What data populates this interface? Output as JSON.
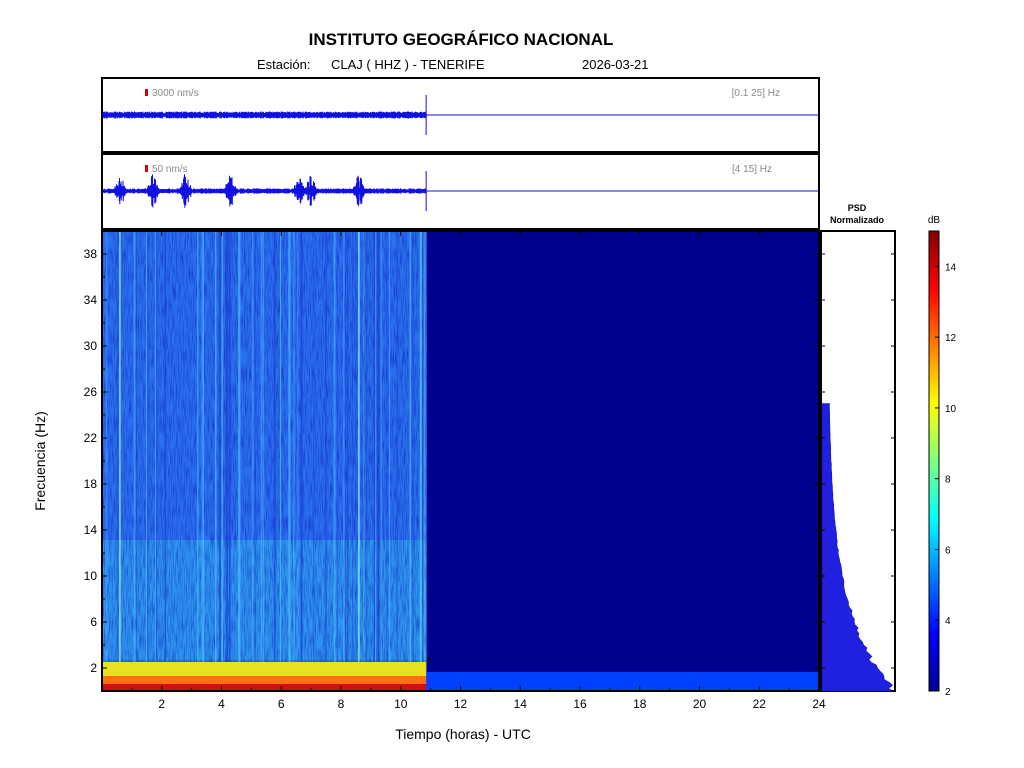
{
  "header": {
    "title": "INSTITUTO GEOGRÁFICO NACIONAL",
    "station_label": "Estación:",
    "station": "CLAJ ( HHZ ) - TENERIFE",
    "date": "2026-03-21"
  },
  "chart_data": [
    {
      "type": "line",
      "panel": "seismogram-broadband",
      "scale_label": "3000 nm/s",
      "band_label": "[0.1 25] Hz",
      "xlim": [
        0,
        24
      ],
      "data_end_hour": 10.85,
      "colors": {
        "trace": "#1010e0",
        "scale_marker": "#dd0000"
      }
    },
    {
      "type": "line",
      "panel": "seismogram-filtered",
      "scale_label": "50 nm/s",
      "band_label": "[4 15] Hz",
      "xlim": [
        0,
        24
      ],
      "data_end_hour": 10.85,
      "events_hours": [
        0.6,
        1.7,
        2.8,
        4.3,
        6.6,
        7.0,
        8.6
      ],
      "colors": {
        "trace": "#1010e0",
        "scale_marker": "#dd0000"
      }
    },
    {
      "type": "heatmap",
      "panel": "spectrogram",
      "xlabel": "Tiempo (horas) - UTC",
      "ylabel": "Frecuencia  (Hz)",
      "xlim": [
        0,
        24
      ],
      "ylim": [
        0,
        40
      ],
      "x_ticks": [
        "2",
        "4",
        "6",
        "8",
        "10",
        "12",
        "14",
        "16",
        "18",
        "20",
        "22",
        "24"
      ],
      "y_ticks": [
        "2",
        "6",
        "10",
        "14",
        "18",
        "22",
        "26",
        "30",
        "34",
        "38"
      ],
      "data_end_hour": 10.85,
      "colormap": "jet"
    },
    {
      "type": "area",
      "panel": "psd",
      "label_line1": "PSD",
      "label_line2": "Normalizado",
      "max_freq": 25,
      "colors": {
        "fill": "#2020e0"
      }
    },
    {
      "type": "colorbar",
      "panel": "colorbar",
      "unit": "dB",
      "range": [
        2,
        15
      ],
      "ticks": [
        "2",
        "4",
        "6",
        "8",
        "10",
        "12",
        "14"
      ]
    }
  ]
}
